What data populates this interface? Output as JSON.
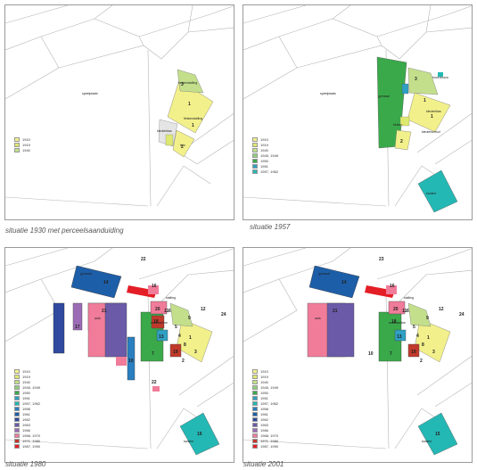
{
  "panels": [
    {
      "caption": "situatie 1930 met perceelsaanduiding",
      "legend": [
        {
          "label": "1910",
          "color": "#f2f08a"
        },
        {
          "label": "1919",
          "color": "#dde86f"
        },
        {
          "label": "1940",
          "color": "#c3df8c"
        }
      ],
      "labels": {
        "a": "speelplaats",
        "b": "fietsenstalling",
        "c": "kleuterklas",
        "d": "tuin",
        "e": "fietsenstalling"
      },
      "numbers": [
        "3",
        "1",
        "1",
        "2"
      ]
    },
    {
      "caption": "situatie 1957",
      "legend": [
        {
          "label": "1910",
          "color": "#f2f08a"
        },
        {
          "label": "1919",
          "color": "#dde86f"
        },
        {
          "label": "1940",
          "color": "#c3df8c"
        },
        {
          "label": "1945, 1949",
          "color": "#8fcf7a"
        },
        {
          "label": "1950",
          "color": "#3aa94a"
        },
        {
          "label": "1951",
          "color": "#2fa0c4"
        },
        {
          "label": "1957, 1962",
          "color": "#24b8b4"
        }
      ],
      "labels": {
        "a": "speelplaats",
        "b": "bovenbouw",
        "c": "gymzaal",
        "d": "fietsen",
        "e": "kleuterklas",
        "f": "kleuterschool",
        "g": "kantine"
      },
      "numbers": [
        "3",
        "1",
        "1",
        "2"
      ]
    },
    {
      "caption": "situatie 1980",
      "legend": [
        {
          "label": "1910",
          "color": "#f2f08a"
        },
        {
          "label": "1919",
          "color": "#dde86f"
        },
        {
          "label": "1940",
          "color": "#c3df8c"
        },
        {
          "label": "1945, 1949",
          "color": "#8fcf7a"
        },
        {
          "label": "1950",
          "color": "#3aa94a"
        },
        {
          "label": "1951",
          "color": "#2fa0c4"
        },
        {
          "label": "1957, 1962",
          "color": "#24b8b4"
        },
        {
          "label": "1958",
          "color": "#2a7fc0"
        },
        {
          "label": "1961",
          "color": "#1d5ea8"
        },
        {
          "label": "1962",
          "color": "#2f4a9e"
        },
        {
          "label": "1963",
          "color": "#6a5aa8"
        },
        {
          "label": "1966",
          "color": "#9b6bb5"
        },
        {
          "label": "1968, 1970",
          "color": "#f07c9a"
        },
        {
          "label": "1971, 1980",
          "color": "#c0392b"
        },
        {
          "label": "1987, 1990",
          "color": "#e41e26"
        }
      ],
      "labels": {
        "a": "gymzaal",
        "b": "aula",
        "c": "aula/kantine",
        "d": "stalling",
        "e": "kantine"
      },
      "numbers": [
        "22",
        "16",
        "14",
        "20",
        "18",
        "21",
        "17",
        "11",
        "6",
        "13",
        "12",
        "24",
        "5",
        "4",
        "19",
        "7",
        "10",
        "1",
        "9",
        "8",
        "3",
        "2",
        "22",
        "15"
      ]
    },
    {
      "caption": "situatie 2001",
      "legend": [
        {
          "label": "1910",
          "color": "#f2f08a"
        },
        {
          "label": "1919",
          "color": "#dde86f"
        },
        {
          "label": "1940",
          "color": "#c3df8c"
        },
        {
          "label": "1945, 1949",
          "color": "#8fcf7a"
        },
        {
          "label": "1950",
          "color": "#3aa94a"
        },
        {
          "label": "1951",
          "color": "#2fa0c4"
        },
        {
          "label": "1957, 1962",
          "color": "#24b8b4"
        },
        {
          "label": "1958",
          "color": "#2a7fc0"
        },
        {
          "label": "1961",
          "color": "#1d5ea8"
        },
        {
          "label": "1962",
          "color": "#2f4a9e"
        },
        {
          "label": "1963",
          "color": "#6a5aa8"
        },
        {
          "label": "1966",
          "color": "#9b6bb5"
        },
        {
          "label": "1968, 1970",
          "color": "#f07c9a"
        },
        {
          "label": "1971, 1980",
          "color": "#c0392b"
        },
        {
          "label": "1987, 1990",
          "color": "#e41e26"
        }
      ],
      "labels": {
        "a": "gymzaal",
        "b": "aula",
        "c": "aula/kantine",
        "d": "stalling",
        "e": "kantine"
      },
      "numbers": [
        "23",
        "16",
        "14",
        "20",
        "18",
        "21",
        "11",
        "6",
        "13",
        "12",
        "24",
        "5",
        "4",
        "19",
        "7",
        "1",
        "9",
        "8",
        "3",
        "2",
        "10",
        "15"
      ]
    }
  ]
}
